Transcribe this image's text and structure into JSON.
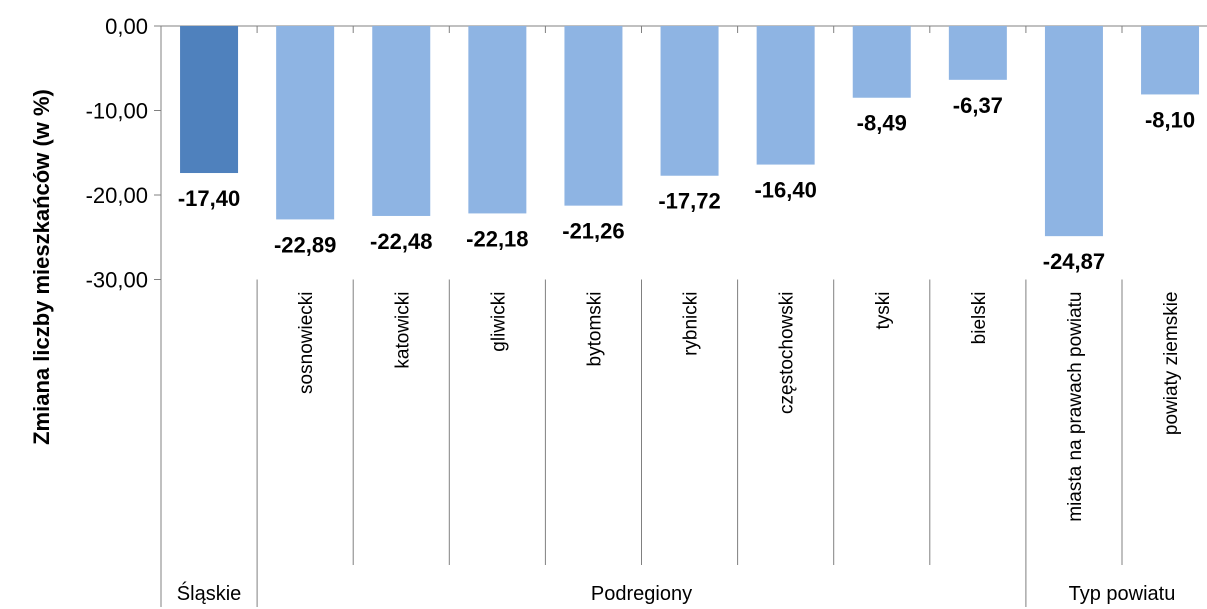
{
  "chart_data": {
    "type": "bar",
    "ylabel": "Zmiana liczby mieszkańców (w %)",
    "ylim": [
      -30,
      0
    ],
    "yticks": [
      0,
      -10,
      -20,
      -30
    ],
    "ytick_labels": [
      "0,00",
      "-10,00",
      "-20,00",
      "-30,00"
    ],
    "grid": false,
    "categories": [
      "",
      "sosnowiecki",
      "katowicki",
      "gliwicki",
      "bytomski",
      "rybnicki",
      "częstochowski",
      "tyski",
      "bielski",
      "miasta na prawach powiatu",
      "powiaty ziemskie"
    ],
    "values": [
      -17.4,
      -22.89,
      -22.48,
      -22.18,
      -21.26,
      -17.72,
      -16.4,
      -8.49,
      -6.37,
      -24.87,
      -8.1
    ],
    "value_labels": [
      "-17,40",
      "-22,89",
      "-22,48",
      "-22,18",
      "-21,26",
      "-17,72",
      "-16,40",
      "-8,49",
      "-6,37",
      "-24,87",
      "-8,10"
    ],
    "groups": [
      {
        "label": "Śląskie",
        "start": 0,
        "end": 0
      },
      {
        "label": "Podregiony",
        "start": 1,
        "end": 8
      },
      {
        "label": "Typ powiatu",
        "start": 9,
        "end": 10
      }
    ],
    "colors": {
      "highlight": "#4F81BD",
      "bar": "#8EB4E3"
    }
  }
}
